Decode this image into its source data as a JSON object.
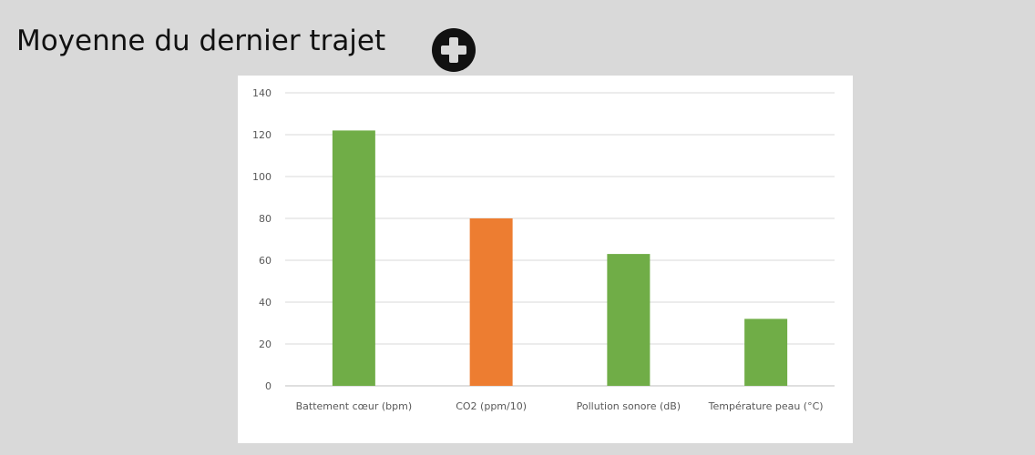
{
  "header": {
    "title": "Moyenne du dernier trajet",
    "add_icon": "plus-circle-icon"
  },
  "colors": {
    "background": "#d9d9d9",
    "bar_green": "#70ad47",
    "bar_orange": "#ed7d31",
    "gridline": "#d9d9d9",
    "tick_text": "#595959"
  },
  "chart_data": {
    "type": "bar",
    "categories": [
      "Battement cœur (bpm)",
      "CO2  (ppm/10)",
      "Pollution sonore (dB)",
      "Température peau (°C)"
    ],
    "values": [
      122,
      80,
      63,
      32
    ],
    "bar_colors": [
      "#70ad47",
      "#ed7d31",
      "#70ad47",
      "#70ad47"
    ],
    "ylim": [
      0,
      140
    ],
    "yticks": [
      0,
      20,
      40,
      60,
      80,
      100,
      120,
      140
    ],
    "grid": true,
    "legend": "none",
    "title": "",
    "xlabel": "",
    "ylabel": ""
  }
}
